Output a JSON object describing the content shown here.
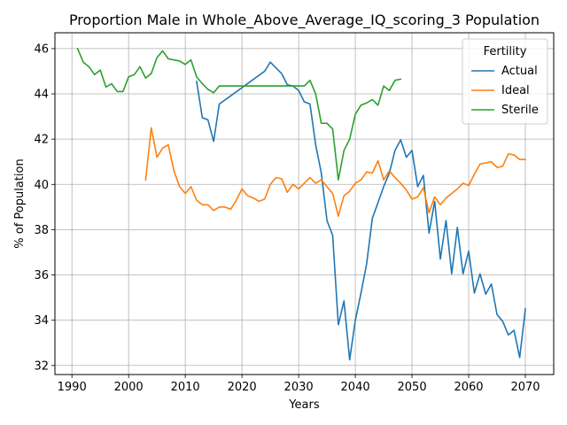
{
  "chart_data": {
    "type": "line",
    "title": "Proportion Male in Whole_Above_Average_IQ_scoring_3 Population",
    "xlabel": "Years",
    "ylabel": "% of Population",
    "xlim": [
      1987,
      2075
    ],
    "ylim": [
      31.6,
      46.7
    ],
    "xticks": [
      1990,
      2000,
      2010,
      2020,
      2030,
      2040,
      2050,
      2060,
      2070
    ],
    "yticks": [
      32,
      34,
      36,
      38,
      40,
      42,
      44,
      46
    ],
    "grid": true,
    "legend": {
      "title": "Fertility",
      "placement": "top-right"
    },
    "series": [
      {
        "name": "Actual",
        "color": "#1f77b4",
        "x": [
          2012,
          2013,
          2014,
          2015,
          2016,
          2024,
          2025,
          2027,
          2028,
          2029,
          2030,
          2031,
          2032,
          2033,
          2034,
          2035,
          2036,
          2037,
          2038,
          2039,
          2040,
          2041,
          2042,
          2043,
          2044,
          2045,
          2046,
          2047,
          2048,
          2049,
          2050,
          2051,
          2052,
          2053,
          2054,
          2055,
          2056,
          2057,
          2058,
          2059,
          2060,
          2061,
          2062,
          2063,
          2064,
          2065,
          2066,
          2067,
          2068,
          2069,
          2070
        ],
        "y": [
          44.55,
          42.95,
          42.85,
          41.9,
          43.55,
          45.0,
          45.4,
          44.9,
          44.4,
          44.35,
          44.15,
          43.65,
          43.55,
          41.75,
          40.5,
          38.4,
          37.75,
          33.8,
          34.85,
          32.25,
          34.0,
          35.2,
          36.5,
          38.5,
          39.2,
          39.9,
          40.5,
          41.5,
          41.97,
          41.2,
          41.5,
          39.9,
          40.4,
          37.85,
          39.25,
          36.7,
          38.4,
          36.05,
          38.1,
          36.05,
          37.05,
          35.2,
          36.05,
          35.15,
          35.6,
          34.25,
          33.95,
          33.35,
          33.55,
          32.35,
          34.5
        ]
      },
      {
        "name": "Ideal",
        "color": "#ff7f0e",
        "x": [
          2003,
          2004,
          2005,
          2006,
          2007,
          2008,
          2009,
          2010,
          2011,
          2012,
          2013,
          2014,
          2015,
          2016,
          2017,
          2018,
          2019,
          2020,
          2021,
          2022,
          2023,
          2024,
          2025,
          2026,
          2027,
          2028,
          2029,
          2030,
          2031,
          2032,
          2033,
          2034,
          2035,
          2036,
          2037,
          2038,
          2039,
          2040,
          2041,
          2042,
          2043,
          2044,
          2045,
          2046,
          2047,
          2048,
          2049,
          2050,
          2051,
          2052,
          2053,
          2054,
          2055,
          2056,
          2057,
          2058,
          2059,
          2060,
          2061,
          2062,
          2063,
          2064,
          2065,
          2066,
          2067,
          2068,
          2069,
          2070
        ],
        "y": [
          40.2,
          42.5,
          41.2,
          41.6,
          41.75,
          40.6,
          39.9,
          39.6,
          39.9,
          39.3,
          39.1,
          39.1,
          38.85,
          39.0,
          39.0,
          38.9,
          39.3,
          39.8,
          39.5,
          39.4,
          39.25,
          39.35,
          40.0,
          40.3,
          40.25,
          39.65,
          40.0,
          39.8,
          40.05,
          40.3,
          40.05,
          40.2,
          39.9,
          39.6,
          38.6,
          39.5,
          39.7,
          40.05,
          40.2,
          40.55,
          40.5,
          41.05,
          40.2,
          40.6,
          40.3,
          40.05,
          39.75,
          39.35,
          39.45,
          39.85,
          38.75,
          39.45,
          39.1,
          39.4,
          39.6,
          39.8,
          40.05,
          39.95,
          40.45,
          40.9,
          40.95,
          41.0,
          40.75,
          40.8,
          41.35,
          41.3,
          41.1,
          41.1
        ]
      },
      {
        "name": "Sterile",
        "color": "#2ca02c",
        "x": [
          1991,
          1992,
          1993,
          1994,
          1995,
          1996,
          1997,
          1998,
          1999,
          2000,
          2001,
          2002,
          2003,
          2004,
          2005,
          2006,
          2007,
          2008,
          2009,
          2010,
          2011,
          2012,
          2013,
          2014,
          2015,
          2016,
          2020,
          2025,
          2028,
          2029,
          2030,
          2031,
          2032,
          2033,
          2034,
          2035,
          2036,
          2037,
          2038,
          2039,
          2040,
          2041,
          2042,
          2043,
          2044,
          2045,
          2046,
          2047,
          2048
        ],
        "y": [
          46.0,
          45.4,
          45.2,
          44.85,
          45.05,
          44.3,
          44.45,
          44.1,
          44.1,
          44.75,
          44.85,
          45.2,
          44.7,
          44.9,
          45.6,
          45.9,
          45.55,
          45.5,
          45.45,
          45.3,
          45.5,
          44.75,
          44.45,
          44.2,
          44.05,
          44.35,
          44.35,
          44.35,
          44.35,
          44.35,
          44.35,
          44.35,
          44.6,
          44.0,
          42.7,
          42.7,
          42.45,
          40.2,
          41.5,
          42.0,
          43.1,
          43.5,
          43.6,
          43.75,
          43.5,
          44.35,
          44.15,
          44.6,
          44.65
        ]
      }
    ]
  }
}
